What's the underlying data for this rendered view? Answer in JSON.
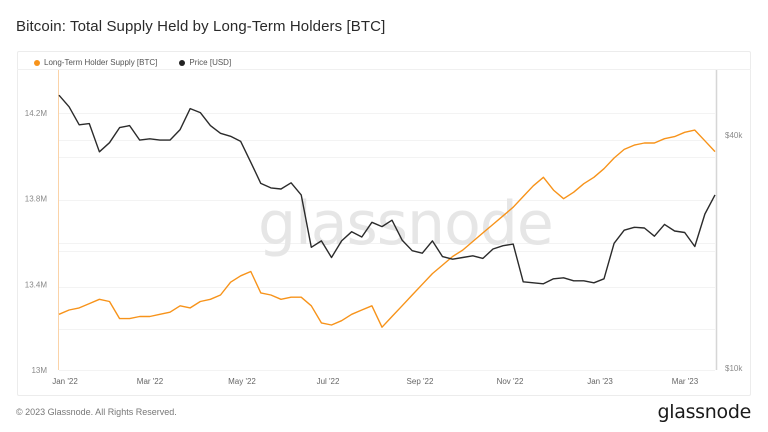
{
  "title": "Bitcoin: Total Supply Held by Long-Term Holders [BTC]",
  "legend": [
    {
      "label": "Long-Term Holder Supply [BTC]",
      "color": "#f7931a"
    },
    {
      "label": "Price [USD]",
      "color": "#222222"
    }
  ],
  "watermark": "glassnode",
  "footer": {
    "copyright": "© 2023 Glassnode. All Rights Reserved.",
    "logo": "glassnode"
  },
  "chart_data": {
    "type": "line",
    "title": "Bitcoin: Total Supply Held by Long-Term Holders [BTC]",
    "xlabel": "",
    "x_ticks": [
      "Jan '22",
      "Mar '22",
      "May '22",
      "Jul '22",
      "Sep '22",
      "Nov '22",
      "Jan '23",
      "Mar '23"
    ],
    "y_left": {
      "label": "Long-Term Holder Supply [BTC]",
      "ticks": [
        "13M",
        "13.4M",
        "13.8M",
        "14.2M"
      ],
      "range": [
        13000000,
        14310000
      ],
      "scale": "linear"
    },
    "y_right": {
      "label": "Price [USD]",
      "ticks": [
        "$10k",
        "$40k"
      ],
      "range": [
        10000,
        48000
      ],
      "scale": "log"
    },
    "grid": true,
    "legend_position": "top-left",
    "x_dates": [
      "2021-12-24",
      "2022-01-01",
      "2022-01-08",
      "2022-01-15",
      "2022-01-22",
      "2022-01-29",
      "2022-02-05",
      "2022-02-12",
      "2022-02-19",
      "2022-02-26",
      "2022-03-05",
      "2022-03-12",
      "2022-03-19",
      "2022-03-26",
      "2022-04-02",
      "2022-04-09",
      "2022-04-16",
      "2022-04-23",
      "2022-04-30",
      "2022-05-07",
      "2022-05-14",
      "2022-05-21",
      "2022-05-28",
      "2022-06-04",
      "2022-06-11",
      "2022-06-18",
      "2022-06-25",
      "2022-07-02",
      "2022-07-09",
      "2022-07-16",
      "2022-07-23",
      "2022-07-30",
      "2022-08-06",
      "2022-08-13",
      "2022-08-20",
      "2022-08-27",
      "2022-09-03",
      "2022-09-10",
      "2022-09-17",
      "2022-09-24",
      "2022-10-01",
      "2022-10-08",
      "2022-10-15",
      "2022-10-22",
      "2022-10-29",
      "2022-11-05",
      "2022-11-12",
      "2022-11-19",
      "2022-11-26",
      "2022-12-03",
      "2022-12-10",
      "2022-12-17",
      "2022-12-24",
      "2022-12-31",
      "2023-01-07",
      "2023-01-14",
      "2023-01-21",
      "2023-01-28",
      "2023-02-04",
      "2023-02-11",
      "2023-02-18",
      "2023-02-25",
      "2023-03-04",
      "2023-03-11",
      "2023-03-18",
      "2023-03-21"
    ],
    "series": [
      {
        "name": "Long-Term Holder Supply [BTC]",
        "color": "#f7931a",
        "axis": "left",
        "values": [
          13260000,
          13280000,
          13290000,
          13310000,
          13330000,
          13320000,
          13240000,
          13240000,
          13250000,
          13250000,
          13260000,
          13270000,
          13300000,
          13290000,
          13320000,
          13330000,
          13350000,
          13410000,
          13440000,
          13460000,
          13360000,
          13350000,
          13330000,
          13340000,
          13340000,
          13300000,
          13220000,
          13210000,
          13230000,
          13260000,
          13280000,
          13300000,
          13200000,
          13250000,
          13300000,
          13350000,
          13400000,
          13450000,
          13490000,
          13530000,
          13560000,
          13600000,
          13640000,
          13680000,
          13720000,
          13760000,
          13810000,
          13860000,
          13900000,
          13840000,
          13800000,
          13830000,
          13870000,
          13900000,
          13940000,
          13990000,
          14030000,
          14050000,
          14060000,
          14060000,
          14080000,
          14090000,
          14110000,
          14120000,
          14070000,
          14020000
        ]
      },
      {
        "name": "Price [USD]",
        "color": "#222222",
        "axis": "right",
        "values": [
          50700,
          47300,
          42500,
          42800,
          36200,
          38200,
          41800,
          42300,
          38800,
          39100,
          38800,
          38800,
          41300,
          46800,
          45700,
          42300,
          40400,
          39700,
          38500,
          34000,
          30000,
          29200,
          29000,
          30100,
          28000,
          20500,
          21300,
          19300,
          21300,
          22500,
          21800,
          23800,
          23200,
          24100,
          21400,
          20100,
          19800,
          21300,
          19400,
          19100,
          19300,
          19500,
          19200,
          20300,
          20700,
          20900,
          16700,
          16600,
          16500,
          17000,
          17100,
          16800,
          16800,
          16600,
          17000,
          21000,
          22700,
          23100,
          23000,
          21900,
          23500,
          22600,
          22400,
          20600,
          25000,
          28000
        ]
      }
    ]
  }
}
